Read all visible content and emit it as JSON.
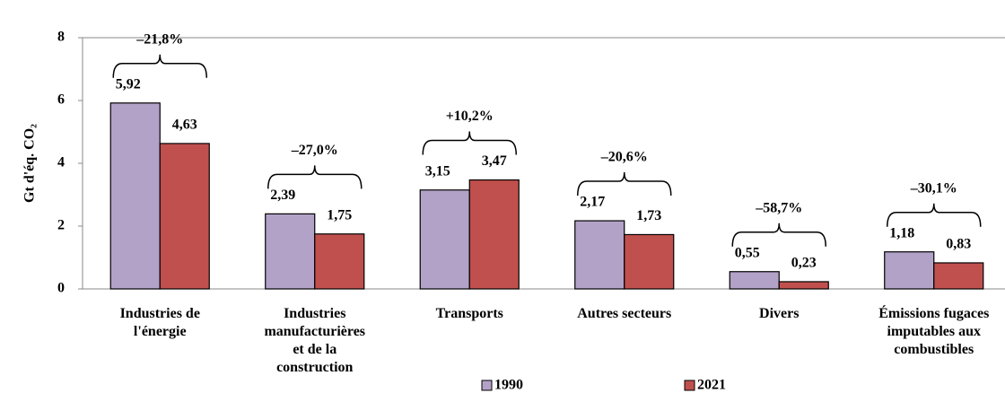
{
  "chart_data": {
    "type": "bar",
    "y_label": "Gt d'éq. CO₂",
    "categories": [
      "Industries de\nl'énergie",
      "Industries\nmanufacturières\net de la\nconstruction",
      "Transports",
      "Autres secteurs",
      "Divers",
      "Émissions fugaces\nimputables aux\ncombustibles"
    ],
    "series": [
      {
        "name": "1990",
        "color": "#b3a2c7",
        "values": [
          5.92,
          2.39,
          3.15,
          2.17,
          0.55,
          1.18
        ],
        "value_labels": [
          "5,92",
          "2,39",
          "3,15",
          "2,17",
          "0,55",
          "1,18"
        ]
      },
      {
        "name": "2021",
        "color": "#c0504d",
        "values": [
          4.63,
          1.75,
          3.47,
          1.73,
          0.23,
          0.83
        ],
        "value_labels": [
          "4,63",
          "1,75",
          "3,47",
          "1,73",
          "0,23",
          "0,83"
        ]
      }
    ],
    "annotations": [
      "–21,8%",
      "–27,0%",
      "+10,2%",
      "–20,6%",
      "–58,7%",
      "–30,1%"
    ],
    "ylim": [
      0,
      8
    ],
    "yticks": [
      0,
      2,
      4,
      6,
      8
    ],
    "grid": false,
    "legend": "bottom"
  }
}
